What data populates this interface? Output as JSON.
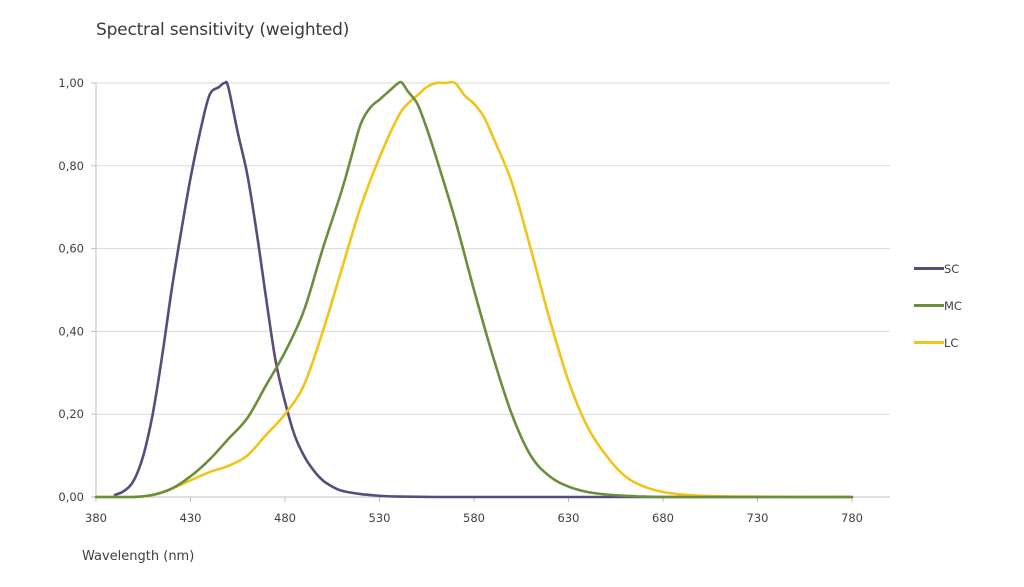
{
  "chart_data": {
    "type": "line",
    "title": "Spectral sensitivity (weighted)",
    "xlabel": "Wavelength (nm)",
    "ylabel": "",
    "xlim": [
      380,
      780
    ],
    "ylim": [
      0,
      1
    ],
    "x_ticks": [
      380,
      430,
      480,
      530,
      580,
      630,
      680,
      730,
      780
    ],
    "y_ticks": [
      0,
      0.2,
      0.4,
      0.6,
      0.8,
      1.0
    ],
    "x_tick_labels": [
      "380",
      "430",
      "480",
      "530",
      "580",
      "630",
      "680",
      "730",
      "780"
    ],
    "y_tick_labels": [
      "0,00",
      "0,20",
      "0,40",
      "0,60",
      "0,80",
      "1,00"
    ],
    "grid": "horizontal",
    "legend_position": "right",
    "series": [
      {
        "name": "SC",
        "color": "#5b4a7c",
        "x": [
          380,
          390,
          395,
          400,
          405,
          410,
          415,
          420,
          425,
          430,
          435,
          440,
          445,
          448,
          450,
          455,
          460,
          465,
          470,
          475,
          480,
          485,
          490,
          495,
          500,
          505,
          510,
          520,
          530,
          540,
          560,
          600,
          700,
          780
        ],
        "y": [
          0,
          0.005,
          0.015,
          0.04,
          0.1,
          0.2,
          0.34,
          0.5,
          0.64,
          0.77,
          0.88,
          0.97,
          0.99,
          1.0,
          0.99,
          0.88,
          0.78,
          0.64,
          0.48,
          0.33,
          0.23,
          0.15,
          0.1,
          0.065,
          0.04,
          0.025,
          0.015,
          0.007,
          0.003,
          0.001,
          0,
          0,
          0,
          0
        ]
      },
      {
        "name": "MC",
        "color": "#6b8e3a",
        "x": [
          380,
          400,
          410,
          420,
          430,
          440,
          450,
          460,
          470,
          480,
          490,
          500,
          510,
          515,
          520,
          525,
          530,
          535,
          540,
          542,
          545,
          550,
          555,
          560,
          570,
          580,
          590,
          600,
          610,
          620,
          630,
          640,
          650,
          660,
          670,
          680,
          700,
          780
        ],
        "y": [
          0,
          0,
          0.005,
          0.02,
          0.05,
          0.09,
          0.14,
          0.19,
          0.27,
          0.35,
          0.45,
          0.6,
          0.74,
          0.82,
          0.9,
          0.94,
          0.96,
          0.98,
          1.0,
          1.0,
          0.98,
          0.95,
          0.89,
          0.82,
          0.67,
          0.5,
          0.34,
          0.2,
          0.1,
          0.05,
          0.025,
          0.012,
          0.006,
          0.003,
          0.001,
          0,
          0,
          0
        ]
      },
      {
        "name": "LC",
        "color": "#f2c318",
        "x": [
          380,
          400,
          410,
          420,
          430,
          440,
          450,
          460,
          470,
          480,
          490,
          500,
          510,
          520,
          530,
          540,
          545,
          550,
          555,
          560,
          565,
          570,
          575,
          580,
          585,
          590,
          600,
          610,
          620,
          630,
          640,
          650,
          660,
          670,
          680,
          690,
          700,
          720,
          780
        ],
        "y": [
          0,
          0,
          0.005,
          0.02,
          0.04,
          0.06,
          0.075,
          0.1,
          0.15,
          0.2,
          0.27,
          0.4,
          0.55,
          0.7,
          0.82,
          0.92,
          0.95,
          0.97,
          0.99,
          1.0,
          1.0,
          1.0,
          0.97,
          0.95,
          0.92,
          0.87,
          0.76,
          0.6,
          0.43,
          0.28,
          0.17,
          0.1,
          0.05,
          0.025,
          0.012,
          0.006,
          0.003,
          0.001,
          0
        ]
      }
    ]
  },
  "header": {
    "title": "Spectral sensitivity (weighted)"
  },
  "axes": {
    "xlabel": "Wavelength (nm)"
  },
  "legend": {
    "items": [
      {
        "label": "SC",
        "color": "#5b4a7c"
      },
      {
        "label": "MC",
        "color": "#6b8e3a"
      },
      {
        "label": "LC",
        "color": "#f2c318"
      }
    ]
  }
}
